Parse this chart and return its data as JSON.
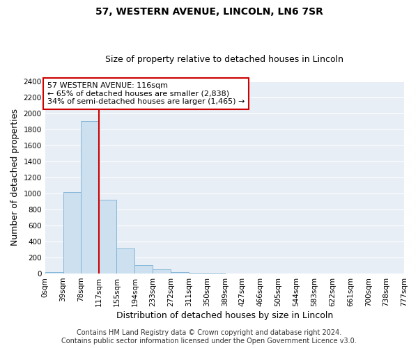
{
  "title": "57, WESTERN AVENUE, LINCOLN, LN6 7SR",
  "subtitle": "Size of property relative to detached houses in Lincoln",
  "xlabel": "Distribution of detached houses by size in Lincoln",
  "ylabel": "Number of detached properties",
  "bin_edges": [
    0,
    39,
    78,
    117,
    155,
    194,
    233,
    272,
    311,
    350,
    389,
    427,
    466,
    505,
    544,
    583,
    622,
    661,
    700,
    738,
    777
  ],
  "bin_labels": [
    "0sqm",
    "39sqm",
    "78sqm",
    "117sqm",
    "155sqm",
    "194sqm",
    "233sqm",
    "272sqm",
    "311sqm",
    "350sqm",
    "389sqm",
    "427sqm",
    "466sqm",
    "505sqm",
    "544sqm",
    "583sqm",
    "622sqm",
    "661sqm",
    "700sqm",
    "738sqm",
    "777sqm"
  ],
  "bar_heights": [
    20,
    1020,
    1900,
    920,
    315,
    105,
    50,
    20,
    10,
    5,
    0,
    0,
    0,
    0,
    0,
    0,
    0,
    0,
    0,
    0
  ],
  "bar_color": "#cde0f0",
  "bar_edge_color": "#7ab0d4",
  "property_line_x": 117,
  "property_line_color": "#cc0000",
  "ylim": [
    0,
    2400
  ],
  "yticks": [
    0,
    200,
    400,
    600,
    800,
    1000,
    1200,
    1400,
    1600,
    1800,
    2000,
    2200,
    2400
  ],
  "annotation_title": "57 WESTERN AVENUE: 116sqm",
  "annotation_line1": "← 65% of detached houses are smaller (2,838)",
  "annotation_line2": "34% of semi-detached houses are larger (1,465) →",
  "annotation_box_color": "#ffffff",
  "annotation_box_edge_color": "#cc0000",
  "footer_line1": "Contains HM Land Registry data © Crown copyright and database right 2024.",
  "footer_line2": "Contains public sector information licensed under the Open Government Licence v3.0.",
  "fig_bg_color": "#ffffff",
  "plot_bg_color": "#e8eef5",
  "grid_color": "#ffffff",
  "title_fontsize": 10,
  "subtitle_fontsize": 9,
  "axis_label_fontsize": 9,
  "tick_fontsize": 7.5,
  "annotation_fontsize": 8,
  "footer_fontsize": 7
}
